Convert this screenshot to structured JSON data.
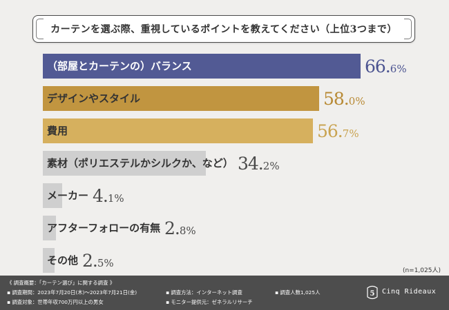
{
  "chart_data": {
    "type": "bar",
    "orientation": "horizontal",
    "title": "カーテンを選ぶ際、重視しているポイントを教えてください（上位3つまで）",
    "categories": [
      "（部屋とカーテンの）バランス",
      "デザインやスタイル",
      "費用",
      "素材（ポリエステルかシルクか、など）",
      "メーカー",
      "アフターフォローの有無",
      "その他"
    ],
    "values": [
      66.6,
      58.0,
      56.7,
      34.2,
      4.1,
      2.8,
      2.5
    ],
    "value_labels": [
      {
        "int": "66.",
        "dec": "6",
        "pct": "%"
      },
      {
        "int": "58.",
        "dec": "0",
        "pct": "%"
      },
      {
        "int": "56.",
        "dec": "7",
        "pct": "%"
      },
      {
        "int": "34.",
        "dec": "2",
        "pct": "%"
      },
      {
        "int": "4.",
        "dec": "1",
        "pct": "%"
      },
      {
        "int": "2.",
        "dec": "8",
        "pct": "%"
      },
      {
        "int": "2.",
        "dec": "5",
        "pct": "%"
      }
    ],
    "unit": "%",
    "xlim": [
      0,
      100
    ],
    "sample_size": "(n=1,025人)"
  },
  "colors": {
    "bar_top": "#525a94",
    "bar_second": "#c19540",
    "bar_third": "#d6b05e",
    "bar_other": "#cfcfcf",
    "label_top": "#ffffff",
    "label_other": "#333333",
    "value_top": "#4b5390",
    "value_second": "#b88a35",
    "value_third": "#c9a350",
    "value_other": "#4a4a4a",
    "footer_bg": "#4d4d4d"
  },
  "footer": {
    "summary": "《 調査概要：「カーテン選び」に関する調査 》",
    "period": "▪ 調査期間：2023年7月20日(木)～2023年7月21日(金)",
    "target": "▪ 調査対象：世帯年収700万円以上の男女",
    "method": "▪ 調査方法：インターネット調査",
    "provider": "▪ モニター提供元：ゼネラルリサーチ",
    "count": "▪ 調査人数1,025人",
    "brand": "Cinq Rideaux",
    "brand_logo_glyph": "5"
  }
}
